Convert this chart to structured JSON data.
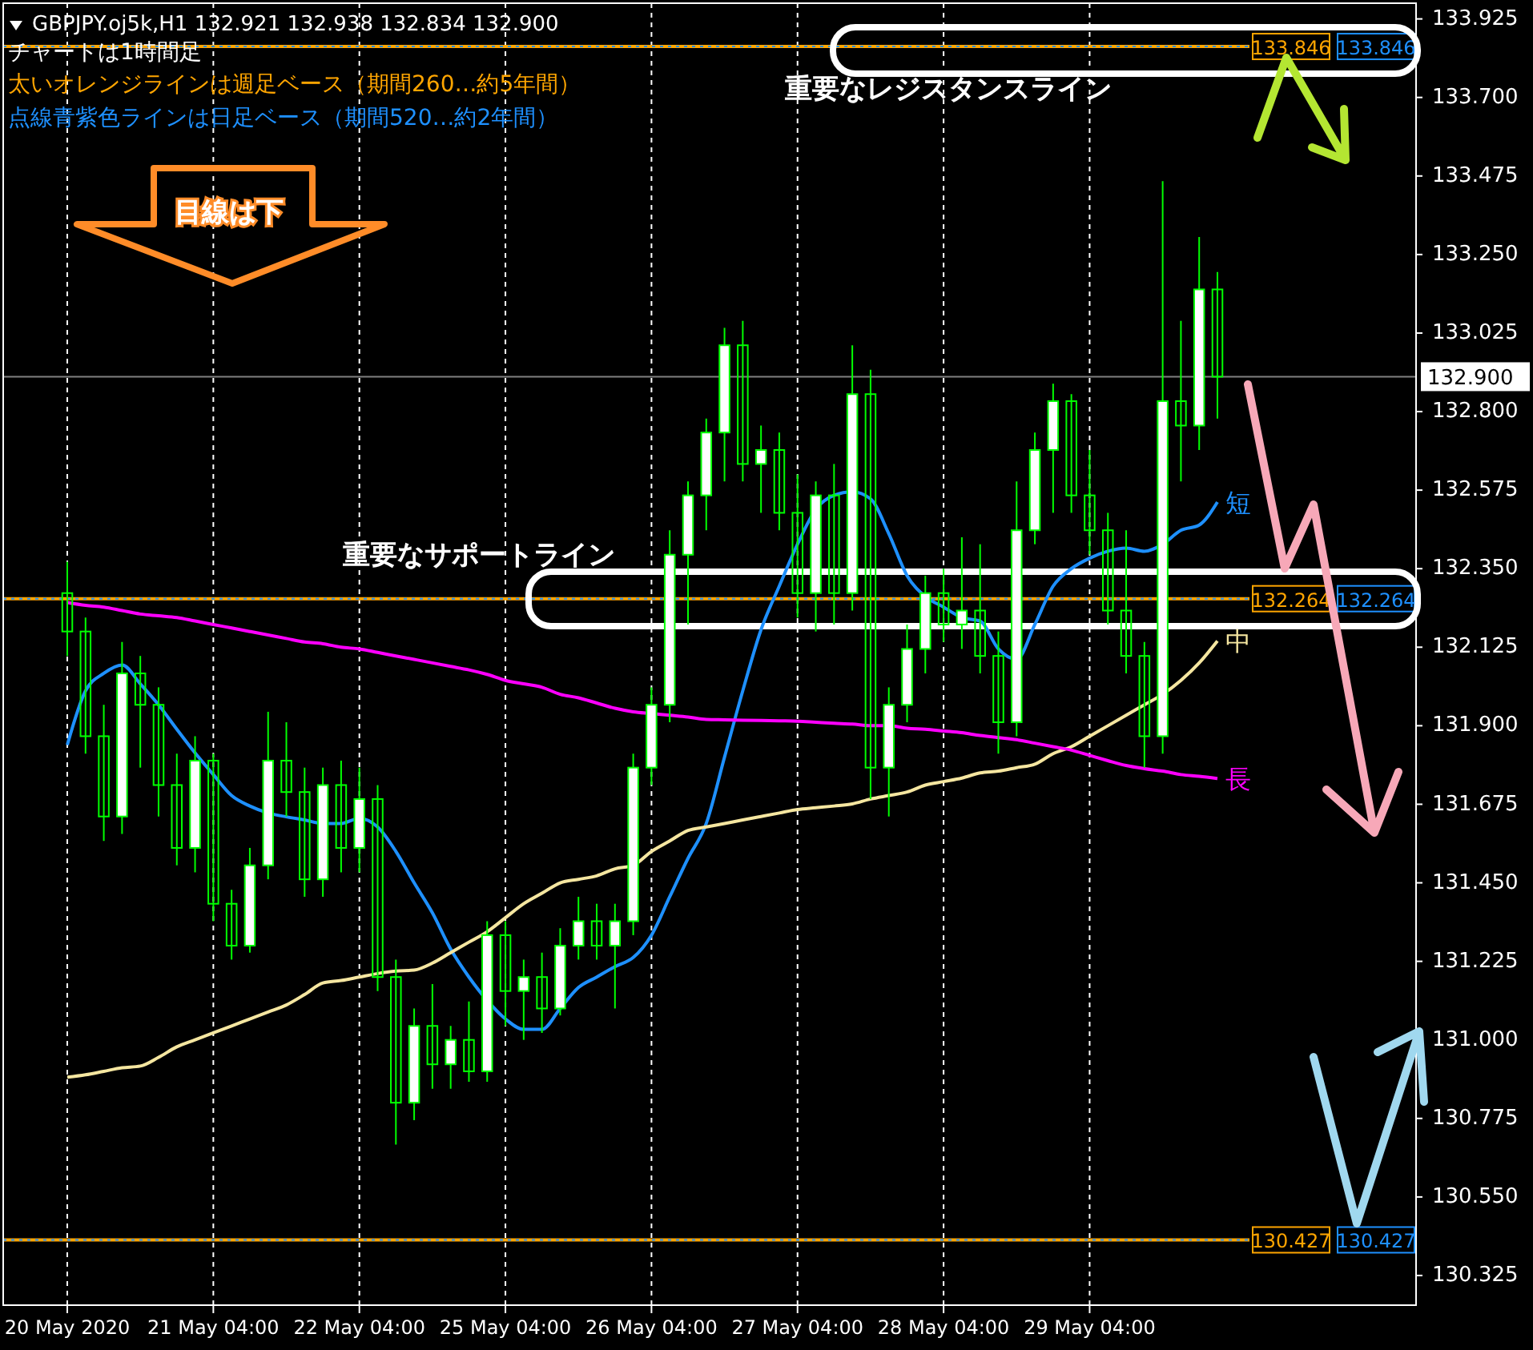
{
  "chart_data": {
    "type": "candlestick",
    "title": "GBPJPY.oj5k,H1  132.921 132.938 132.834 132.900",
    "annotations": [
      "チャートは1時間足",
      "太いオレンジラインは週足ベース（期間260…約5年間）",
      "点線青紫色ラインは日足ベース（期間520…約2年間）",
      "目線は下",
      {
        "text": "重要なレジスタンスライン",
        "y": 133.846
      },
      {
        "text": "重要なサポートライン",
        "y": 132.264
      }
    ],
    "categories": [
      "20 May 2020",
      null,
      null,
      null,
      null,
      null,
      null,
      null,
      "21 May 04:00",
      null,
      null,
      null,
      null,
      null,
      null,
      null,
      "22 May 04:00",
      null,
      null,
      null,
      null,
      null,
      null,
      null,
      "25 May 04:00",
      null,
      null,
      null,
      null,
      null,
      null,
      null,
      "26 May 04:00",
      null,
      null,
      null,
      null,
      null,
      null,
      null,
      "27 May 04:00",
      null,
      null,
      null,
      null,
      null,
      null,
      null,
      "28 May 04:00",
      null,
      null,
      null,
      null,
      null,
      null,
      null,
      "29 May 04:00",
      null,
      null,
      null,
      null,
      null,
      null,
      null
    ],
    "ylim": [
      130.24,
      133.97
    ],
    "yticks": [
      130.325,
      {
        "value": 130.55,
        "label": "130.550"
      },
      130.775,
      {
        "value": 131,
        "label": "131.000"
      },
      131.225,
      {
        "value": 131.45,
        "label": "131.450"
      },
      131.675,
      {
        "value": 131.9,
        "label": "131.900"
      },
      132.125,
      {
        "value": 132.35,
        "label": "132.350"
      },
      132.575,
      {
        "value": 132.8,
        "label": "132.800"
      },
      133.025,
      {
        "value": 133.25,
        "label": "133.250"
      },
      133.475,
      {
        "value": 133.7,
        "label": "133.700"
      },
      133.925
    ],
    "grid": "x",
    "ref_lines": [
      {
        "axis": "y",
        "value": 133.846,
        "label": "133.846",
        "color": "#ffa500"
      },
      {
        "axis": "y",
        "value": 133.846,
        "label": "133.846",
        "color": "#1e90ff",
        "line_style": "dotted"
      },
      {
        "axis": "y",
        "value": 132.264,
        "label": "132.264",
        "color": "#ffa500"
      },
      {
        "axis": "y",
        "value": 132.264,
        "label": "132.264",
        "color": "#1e90ff",
        "line_style": "dotted"
      },
      {
        "axis": "y",
        "value": 130.427,
        "label": "130.427",
        "color": "#ffa500"
      },
      {
        "axis": "y",
        "value": 130.427,
        "label": "130.427",
        "color": "#1e90ff",
        "line_style": "dotted"
      },
      {
        "axis": "y",
        "value": 132.9,
        "label": "132.900",
        "color": "#808080"
      }
    ],
    "series": [
      {
        "type": "line",
        "name": "短",
        "color": "#1e90ff",
        "values": [
          131.845,
          132.0,
          132.05,
          132.074,
          132.02,
          131.96,
          131.89,
          131.822,
          131.76,
          131.7,
          131.67,
          131.65,
          131.639,
          131.63,
          131.62,
          131.62,
          131.635,
          131.61,
          131.54,
          131.45,
          131.364,
          131.26,
          131.18,
          131.113,
          131.06,
          131.03,
          131.03,
          131.09,
          131.15,
          131.18,
          131.21,
          131.236,
          131.3,
          131.41,
          131.52,
          131.62,
          131.81,
          132.0,
          132.175,
          132.3,
          132.42,
          132.52,
          132.56,
          132.57,
          132.55,
          132.45,
          132.33,
          132.27,
          132.24,
          132.21,
          132.2,
          132.12,
          132.09,
          132.19,
          132.3,
          132.35,
          132.38,
          132.4,
          132.409,
          132.4,
          132.42,
          132.46,
          132.475,
          132.541
        ]
      },
      {
        "type": "line",
        "name": "中",
        "color": "#f5e6a0",
        "values": [
          130.893,
          130.9,
          130.91,
          130.92,
          130.925,
          130.95,
          130.98,
          131.0,
          131.02,
          131.04,
          131.06,
          131.08,
          131.1,
          131.13,
          131.163,
          131.17,
          131.18,
          131.19,
          131.197,
          131.2,
          131.22,
          131.25,
          131.28,
          131.31,
          131.35,
          131.39,
          131.42,
          131.45,
          131.46,
          131.47,
          131.49,
          131.5,
          131.54,
          131.57,
          131.6,
          131.61,
          131.62,
          131.63,
          131.64,
          131.65,
          131.66,
          131.665,
          131.67,
          131.676,
          131.69,
          131.7,
          131.71,
          131.73,
          131.74,
          131.75,
          131.765,
          131.77,
          131.78,
          131.79,
          131.82,
          131.84,
          131.87,
          131.9,
          131.93,
          131.96,
          131.99,
          132.03,
          132.08,
          132.143
        ]
      },
      {
        "type": "line",
        "name": "長",
        "color": "#ff00ff",
        "values": [
          132.253,
          132.245,
          132.24,
          132.23,
          132.22,
          132.215,
          132.21,
          132.2,
          132.19,
          132.18,
          132.17,
          132.16,
          132.15,
          132.14,
          132.135,
          132.125,
          132.12,
          132.11,
          132.1,
          132.09,
          132.08,
          132.07,
          132.06,
          132.047,
          132.03,
          132.02,
          132.01,
          131.99,
          131.98,
          131.965,
          131.95,
          131.94,
          131.935,
          131.93,
          131.925,
          131.918,
          131.917,
          131.916,
          131.915,
          131.914,
          131.913,
          131.91,
          131.907,
          131.905,
          131.9,
          131.9,
          131.893,
          131.89,
          131.885,
          131.88,
          131.872,
          131.866,
          131.86,
          131.85,
          131.84,
          131.83,
          131.815,
          131.8,
          131.786,
          131.777,
          131.77,
          131.76,
          131.755,
          131.749
        ]
      },
      {
        "color": "#00ff00",
        "ohlc": [
          [
            132.28,
            132.37,
            132.1,
            132.17
          ],
          [
            132.17,
            132.21,
            131.82,
            131.87
          ],
          [
            131.87,
            131.96,
            131.57,
            131.64
          ],
          [
            131.64,
            132.14,
            131.59,
            132.05
          ],
          [
            132.05,
            132.1,
            131.78,
            131.96
          ],
          [
            131.96,
            132.01,
            131.64,
            131.73
          ],
          [
            131.73,
            131.82,
            131.5,
            131.55
          ],
          [
            131.55,
            131.87,
            131.48,
            131.8
          ],
          [
            131.8,
            131.82,
            131.34,
            131.39
          ],
          [
            131.39,
            131.43,
            131.23,
            131.27
          ],
          [
            131.27,
            131.55,
            131.25,
            131.5
          ],
          [
            131.5,
            131.94,
            131.46,
            131.8
          ],
          [
            131.8,
            131.91,
            131.64,
            131.71
          ],
          [
            131.71,
            131.78,
            131.41,
            131.46
          ],
          [
            131.46,
            131.78,
            131.41,
            131.73
          ],
          [
            131.73,
            131.8,
            131.48,
            131.55
          ],
          [
            131.55,
            131.78,
            131.48,
            131.69
          ],
          [
            131.69,
            131.73,
            131.14,
            131.18
          ],
          [
            131.18,
            131.23,
            130.7,
            130.82
          ],
          [
            130.82,
            131.09,
            130.77,
            131.04
          ],
          [
            131.04,
            131.16,
            130.86,
            130.93
          ],
          [
            130.93,
            131.04,
            130.86,
            131
          ],
          [
            131,
            131.11,
            130.88,
            130.91
          ],
          [
            130.91,
            131.34,
            130.88,
            131.3
          ],
          [
            131.3,
            131.34,
            131.04,
            131.14
          ],
          [
            131.14,
            131.23,
            131,
            131.18
          ],
          [
            131.18,
            131.25,
            131.02,
            131.09
          ],
          [
            131.09,
            131.32,
            131.07,
            131.27
          ],
          [
            131.27,
            131.41,
            131.23,
            131.34
          ],
          [
            131.34,
            131.39,
            131.23,
            131.27
          ],
          [
            131.27,
            131.39,
            131.09,
            131.34
          ],
          [
            131.34,
            131.82,
            131.3,
            131.78
          ],
          [
            131.78,
            132.01,
            131.73,
            131.96
          ],
          [
            131.96,
            132.46,
            131.91,
            132.39
          ],
          [
            132.39,
            132.6,
            132.19,
            132.56
          ],
          [
            132.56,
            132.78,
            132.46,
            132.74
          ],
          [
            132.74,
            133.04,
            132.6,
            132.99
          ],
          [
            132.99,
            133.06,
            132.6,
            132.65
          ],
          [
            132.65,
            132.76,
            132.51,
            132.69
          ],
          [
            132.69,
            132.74,
            132.46,
            132.51
          ],
          [
            132.51,
            132.62,
            132.21,
            132.28
          ],
          [
            132.28,
            132.6,
            132.17,
            132.56
          ],
          [
            132.56,
            132.65,
            132.19,
            132.28
          ],
          [
            132.28,
            132.99,
            132.23,
            132.85
          ],
          [
            132.85,
            132.92,
            131.69,
            131.78
          ],
          [
            131.78,
            132.01,
            131.64,
            131.96
          ],
          [
            131.96,
            132.19,
            131.91,
            132.12
          ],
          [
            132.12,
            132.33,
            132.05,
            132.28
          ],
          [
            132.28,
            132.35,
            132.14,
            132.19
          ],
          [
            132.19,
            132.44,
            132.12,
            132.23
          ],
          [
            132.23,
            132.42,
            132.05,
            132.1
          ],
          [
            132.1,
            132.17,
            131.82,
            131.91
          ],
          [
            131.91,
            132.6,
            131.87,
            132.46
          ],
          [
            132.46,
            132.74,
            132.42,
            132.69
          ],
          [
            132.69,
            132.88,
            132.51,
            132.83
          ],
          [
            132.83,
            132.85,
            132.51,
            132.56
          ],
          [
            132.56,
            132.69,
            132.39,
            132.46
          ],
          [
            132.46,
            132.51,
            132.19,
            132.23
          ],
          [
            132.23,
            132.46,
            132.05,
            132.1
          ],
          [
            132.1,
            132.14,
            131.78,
            131.87
          ],
          [
            131.87,
            133.46,
            131.82,
            132.83
          ],
          [
            132.83,
            133.06,
            132.6,
            132.76
          ],
          [
            132.76,
            133.3,
            132.69,
            133.15
          ],
          [
            133.15,
            133.2,
            132.78,
            132.9
          ]
        ]
      }
    ]
  }
}
